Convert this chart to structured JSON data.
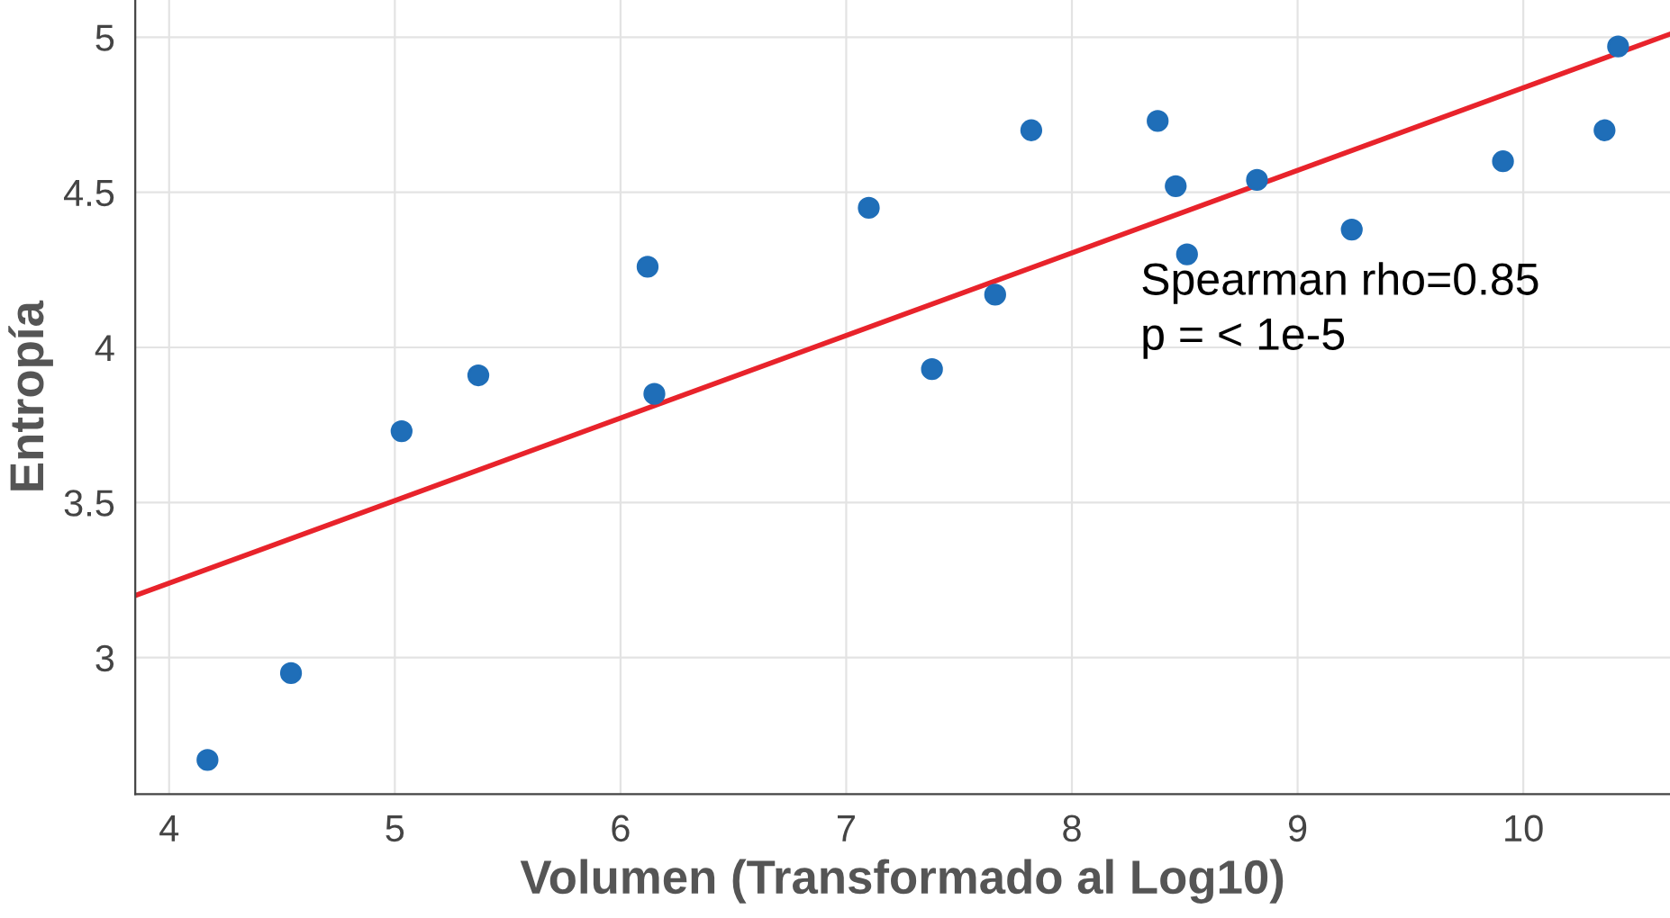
{
  "chart_data": {
    "type": "scatter",
    "xlabel": "Volumen (Transformado al Log10)",
    "ylabel": "Entropía",
    "xlim": [
      3.85,
      10.65
    ],
    "ylim": [
      2.56,
      5.12
    ],
    "xticks": [
      4,
      5,
      6,
      7,
      8,
      9,
      10
    ],
    "yticks": [
      3,
      3.5,
      4,
      4.5,
      5
    ],
    "grid": true,
    "marker": "circle",
    "series": [
      {
        "color": "#1f6eb8",
        "x": [
          4.17,
          4.54,
          5.03,
          5.37,
          6.12,
          6.15,
          7.1,
          7.38,
          7.66,
          7.82,
          8.38,
          8.46,
          8.51,
          8.82,
          9.24,
          9.91,
          10.36,
          10.42
        ],
        "values": [
          2.67,
          2.95,
          3.73,
          3.91,
          4.26,
          3.85,
          4.45,
          3.93,
          4.17,
          4.7,
          4.73,
          4.52,
          4.3,
          4.54,
          4.38,
          4.6,
          4.7,
          4.97
        ]
      },
      {
        "type": "line",
        "color": "#e8232b",
        "marker": "none",
        "line_style": "solid",
        "x": [
          3.85,
          10.65
        ],
        "values": [
          3.2,
          5.01
        ]
      }
    ],
    "annotations": [
      "Spearman rho=0.85\np = < 1e-5"
    ]
  }
}
